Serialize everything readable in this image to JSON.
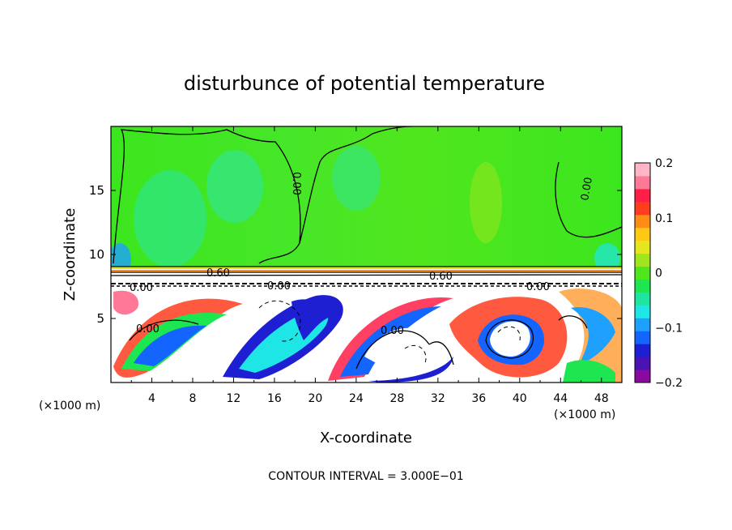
{
  "chart_data": {
    "type": "heatmap",
    "title": "disturbunce of potential temperature",
    "xlabel": "X-coordinate",
    "ylabel": "Z-coordinate",
    "x_unit_left": "(×1000 m)",
    "x_unit_right": "(×1000 m)",
    "xlim": [
      0,
      50
    ],
    "ylim": [
      0,
      20
    ],
    "x_ticks": [
      "4",
      "8",
      "12",
      "16",
      "20",
      "24",
      "28",
      "32",
      "36",
      "40",
      "44",
      "48"
    ],
    "y_ticks": [
      "5",
      "10",
      "15"
    ],
    "colorbar": {
      "range": [
        -0.2,
        0.2
      ],
      "labels": [
        "0.2",
        "0.1",
        "0",
        "−0.1",
        "−0.2"
      ],
      "colors": [
        "#8a0aa0",
        "#4b12b4",
        "#1e1ed2",
        "#1464ff",
        "#1ea0ff",
        "#1ee6e6",
        "#1ee6a0",
        "#1ee650",
        "#50e61e",
        "#a0e61e",
        "#e6e61e",
        "#ffc814",
        "#ff8c14",
        "#ff3c1e",
        "#ff1e46",
        "#ff7896",
        "#ffb4c8"
      ]
    },
    "contour_labels": [
      "0.00",
      "0.00",
      "0.00",
      "0.00",
      "0.00",
      "0.00",
      "0.00",
      "0.60",
      "0.60"
    ],
    "footer": "CONTOUR INTERVAL = 3.000E−01"
  }
}
